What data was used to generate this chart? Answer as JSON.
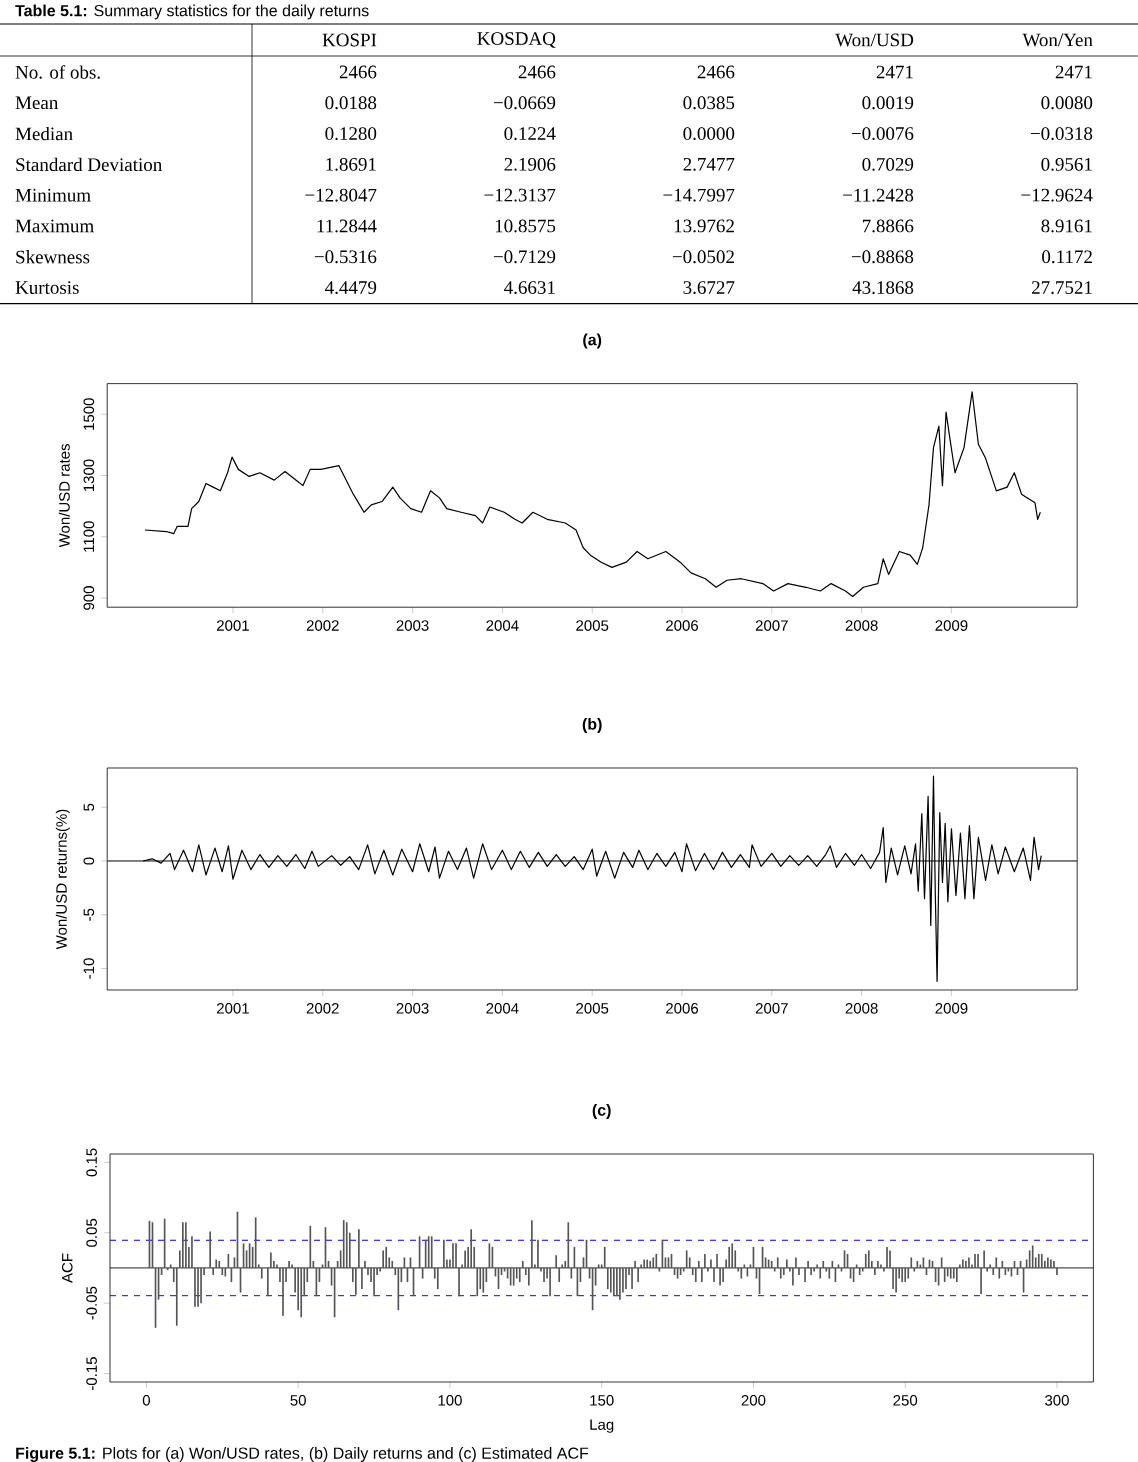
{
  "chart_data": [
    {
      "type": "other",
      "title": "**Table 5.1:** Summary statistics for the daily returns",
      "categories": [
        "KOSPI",
        "KOSDAQ",
        null,
        "Won/USD",
        "Won/Yen"
      ],
      "y_categories": [
        "No. of obs.",
        "Mean",
        "Median",
        "Standard Deviation",
        "Minimum",
        "Maximum",
        "Skewness",
        "Kurtosis"
      ],
      "cell_labels": [
        [
          "2466",
          "2466",
          "2466",
          "2471",
          "2471"
        ],
        [
          "0.0188",
          "−0.0669",
          "0.0385",
          "0.0019",
          "0.0080"
        ],
        [
          "0.1280",
          "0.1224",
          "0.0000",
          "−0.0076",
          "−0.0318"
        ],
        [
          "1.8691",
          "2.1906",
          "2.7477",
          "0.7029",
          "0.9561"
        ],
        [
          "−12.8047",
          "−12.3137",
          "−14.7997",
          "−11.2428",
          "−12.9624"
        ],
        [
          "11.2844",
          "10.8575",
          "13.9762",
          "7.8866",
          "8.9161"
        ],
        [
          "−0.5316",
          "−0.7129",
          "−0.0502",
          "−0.8868",
          "0.1172"
        ],
        [
          "4.4479",
          "4.6631",
          "3.6727",
          "43.1868",
          "27.7521"
        ]
      ]
    },
    {
      "type": "line",
      "title": "(a)",
      "ylabel": "Won/USD rates",
      "color": "#000000",
      "xlim": [
        1999.6,
        2010.4
      ],
      "ylim": [
        870,
        1600
      ],
      "xticks": [
        2001,
        2002,
        2003,
        2004,
        2005,
        2006,
        2007,
        2008,
        2009
      ],
      "yticks": [
        900,
        1100,
        1300,
        1500
      ],
      "x": [
        2000.02,
        2000.26,
        2000.34,
        2000.38,
        2000.5,
        2000.54,
        2000.62,
        2000.7,
        2000.78,
        2000.86,
        2000.94,
        2000.99,
        2001.06,
        2001.18,
        2001.3,
        2001.46,
        2001.58,
        2001.7,
        2001.78,
        2001.86,
        2001.98,
        2002.18,
        2002.26,
        2002.34,
        2002.46,
        2002.54,
        2002.66,
        2002.78,
        2002.86,
        2002.98,
        2003.1,
        2003.2,
        2003.3,
        2003.38,
        2003.54,
        2003.7,
        2003.78,
        2003.86,
        2004.02,
        2004.14,
        2004.22,
        2004.34,
        2004.5,
        2004.7,
        2004.82,
        2004.9,
        2004.98,
        2005.1,
        2005.22,
        2005.38,
        2005.5,
        2005.62,
        2005.82,
        2005.98,
        2006.1,
        2006.26,
        2006.38,
        2006.5,
        2006.66,
        2006.9,
        2007.02,
        2007.18,
        2007.38,
        2007.54,
        2007.66,
        2007.82,
        2007.9,
        2008.02,
        2008.18,
        2008.24,
        2008.3,
        2008.42,
        2008.54,
        2008.62,
        2008.68,
        2008.75,
        2008.8,
        2008.86,
        2008.9,
        2008.94,
        2008.98,
        2009.04,
        2009.14,
        2009.23,
        2009.3,
        2009.38,
        2009.5,
        2009.62,
        2009.7,
        2009.78,
        2009.93,
        2009.96,
        2009.99
      ],
      "values": [
        1122,
        1117,
        1110,
        1134,
        1134,
        1192,
        1215,
        1274,
        1262,
        1250,
        1309,
        1360,
        1320,
        1297,
        1309,
        1285,
        1313,
        1285,
        1267,
        1320,
        1320,
        1332,
        1285,
        1239,
        1180,
        1204,
        1215,
        1262,
        1227,
        1192,
        1180,
        1250,
        1227,
        1192,
        1180,
        1169,
        1145,
        1197,
        1180,
        1157,
        1145,
        1180,
        1157,
        1145,
        1122,
        1064,
        1040,
        1017,
        1000,
        1017,
        1052,
        1028,
        1052,
        1017,
        982,
        963,
        935,
        958,
        963,
        947,
        923,
        947,
        935,
        923,
        947,
        923,
        905,
        935,
        947,
        1028,
        977,
        1052,
        1040,
        1010,
        1064,
        1204,
        1391,
        1461,
        1267,
        1507,
        1426,
        1309,
        1391,
        1573,
        1402,
        1356,
        1250,
        1262,
        1309,
        1239,
        1211,
        1157,
        1180
      ]
    },
    {
      "type": "line",
      "title": "(b)",
      "ylabel": "Won/USD returns(%)",
      "color": "#000000",
      "xlim": [
        1999.6,
        2010.4
      ],
      "ylim": [
        -12,
        8.65
      ],
      "xticks": [
        2001,
        2002,
        2003,
        2004,
        2005,
        2006,
        2007,
        2008,
        2009
      ],
      "yticks": [
        -10,
        -5,
        0,
        5
      ],
      "ref_lines": [
        {
          "axis": "y",
          "value": 0,
          "color": "#000000",
          "line_style": "solid"
        }
      ],
      "x": [
        2000.0,
        2000.1,
        2000.2,
        2000.3,
        2000.35,
        2000.45,
        2000.55,
        2000.62,
        2000.7,
        2000.8,
        2000.88,
        2000.95,
        2001.0,
        2001.1,
        2001.2,
        2001.3,
        2001.4,
        2001.5,
        2001.6,
        2001.7,
        2001.8,
        2001.88,
        2001.95,
        2002.1,
        2002.2,
        2002.3,
        2002.4,
        2002.5,
        2002.58,
        2002.68,
        2002.78,
        2002.88,
        2003.0,
        2003.08,
        2003.18,
        2003.25,
        2003.3,
        2003.4,
        2003.5,
        2003.6,
        2003.68,
        2003.78,
        2003.88,
        2004.0,
        2004.1,
        2004.2,
        2004.3,
        2004.4,
        2004.5,
        2004.6,
        2004.7,
        2004.8,
        2004.9,
        2005.0,
        2005.05,
        2005.15,
        2005.25,
        2005.35,
        2005.45,
        2005.52,
        2005.62,
        2005.72,
        2005.82,
        2005.92,
        2006.0,
        2006.05,
        2006.15,
        2006.25,
        2006.35,
        2006.45,
        2006.55,
        2006.65,
        2006.75,
        2006.78,
        2006.88,
        2007.0,
        2007.1,
        2007.2,
        2007.3,
        2007.4,
        2007.5,
        2007.6,
        2007.65,
        2007.72,
        2007.82,
        2007.92,
        2008.0,
        2008.1,
        2008.2,
        2008.24,
        2008.27,
        2008.33,
        2008.4,
        2008.48,
        2008.55,
        2008.6,
        2008.63,
        2008.67,
        2008.7,
        2008.74,
        2008.77,
        2008.8,
        2008.82,
        2008.84,
        2008.87,
        2008.9,
        2008.93,
        2008.96,
        2009.0,
        2009.05,
        2009.1,
        2009.15,
        2009.2,
        2009.25,
        2009.3,
        2009.38,
        2009.45,
        2009.52,
        2009.6,
        2009.7,
        2009.8,
        2009.88,
        2009.92,
        2009.97,
        2010.0
      ],
      "values": [
        0,
        0.2,
        -0.2,
        0.7,
        -0.8,
        1.0,
        -1.0,
        1.5,
        -1.3,
        1.2,
        -1.0,
        1.4,
        -1.7,
        1.0,
        -0.8,
        0.6,
        -0.6,
        0.5,
        -0.5,
        0.6,
        -0.7,
        0.9,
        -0.5,
        0.5,
        -0.4,
        0.4,
        -0.8,
        1.5,
        -1.2,
        1.0,
        -1.3,
        1.1,
        -1.0,
        1.6,
        -1.0,
        1.3,
        -1.6,
        0.9,
        -0.8,
        1.2,
        -1.6,
        1.6,
        -0.8,
        1.0,
        -0.8,
        0.9,
        -0.6,
        0.8,
        -0.5,
        0.6,
        -0.5,
        0.4,
        -0.8,
        1.1,
        -1.4,
        0.9,
        -1.6,
        0.8,
        -0.6,
        1.0,
        -0.8,
        0.7,
        -0.5,
        0.8,
        -1.0,
        1.6,
        -0.9,
        0.7,
        -0.8,
        0.8,
        -0.6,
        0.6,
        -0.6,
        1.5,
        -0.5,
        0.7,
        -0.5,
        0.5,
        -0.4,
        0.5,
        -0.5,
        0.6,
        1.4,
        -0.6,
        0.7,
        -0.4,
        0.6,
        -0.7,
        0.8,
        3.1,
        -2.0,
        1.2,
        -1.3,
        1.4,
        -1.2,
        1.6,
        -2.8,
        4.4,
        -3.5,
        6.0,
        -6.0,
        7.9,
        -3.0,
        -11.2,
        4.5,
        -2.0,
        3.5,
        -3.8,
        3.0,
        -3.2,
        2.6,
        -3.5,
        3.3,
        -3.5,
        2.2,
        -1.8,
        1.5,
        -1.2,
        1.3,
        -1.0,
        1.2,
        -1.8,
        2.2,
        -0.8,
        0.5
      ]
    },
    {
      "type": "bar",
      "title": "(c)",
      "xlabel": "Lag",
      "ylabel": "ACF",
      "color": "#555555",
      "xlim": [
        -12,
        312
      ],
      "ylim": [
        -0.162,
        0.162
      ],
      "xticks": [
        0,
        50,
        100,
        150,
        200,
        250,
        300
      ],
      "yticks": [
        -0.15,
        -0.05,
        0.05,
        0.15
      ],
      "ref_lines": [
        {
          "axis": "y",
          "value": 0,
          "color": "#000000",
          "line_style": "solid"
        },
        {
          "axis": "y",
          "value": 0.0394,
          "color": "#0000cc",
          "line_style": "dashed"
        },
        {
          "axis": "y",
          "value": -0.0394,
          "color": "#0000cc",
          "line_style": "dashed"
        }
      ],
      "annotations": [
        "**Figure 5.1:** Plots for (a) Won/USD rates, (b) Daily returns and (c) Estimated ACF"
      ],
      "x": [
        1,
        2,
        3,
        4,
        5,
        6,
        7,
        8,
        9,
        10,
        11,
        12,
        13,
        14,
        15,
        16,
        17,
        18,
        19,
        20,
        21,
        22,
        23,
        24,
        25,
        26,
        27,
        28,
        29,
        30,
        31,
        32,
        33,
        34,
        35,
        36,
        37,
        38,
        39,
        40,
        41,
        42,
        43,
        44,
        45,
        46,
        47,
        48,
        49,
        50,
        51,
        52,
        53,
        54,
        55,
        56,
        57,
        58,
        59,
        60,
        61,
        62,
        63,
        64,
        65,
        66,
        67,
        68,
        69,
        70,
        71,
        72,
        73,
        74,
        75,
        76,
        77,
        78,
        79,
        80,
        81,
        82,
        83,
        84,
        85,
        86,
        87,
        88,
        89,
        90,
        91,
        92,
        93,
        94,
        95,
        96,
        97,
        98,
        99,
        100,
        101,
        102,
        103,
        104,
        105,
        106,
        107,
        108,
        109,
        110,
        111,
        112,
        113,
        114,
        115,
        116,
        117,
        118,
        119,
        120,
        121,
        122,
        123,
        124,
        125,
        126,
        127,
        128,
        129,
        130,
        131,
        132,
        133,
        134,
        135,
        136,
        137,
        138,
        139,
        140,
        141,
        142,
        143,
        144,
        145,
        146,
        147,
        148,
        149,
        150,
        151,
        152,
        153,
        154,
        155,
        156,
        157,
        158,
        159,
        160,
        161,
        162,
        163,
        164,
        165,
        166,
        167,
        168,
        169,
        170,
        171,
        172,
        173,
        174,
        175,
        176,
        177,
        178,
        179,
        180,
        181,
        182,
        183,
        184,
        185,
        186,
        187,
        188,
        189,
        190,
        191,
        192,
        193,
        194,
        195,
        196,
        197,
        198,
        199,
        200,
        201,
        202,
        203,
        204,
        205,
        206,
        207,
        208,
        209,
        210,
        211,
        212,
        213,
        214,
        215,
        216,
        217,
        218,
        219,
        220,
        221,
        222,
        223,
        224,
        225,
        226,
        227,
        228,
        229,
        230,
        231,
        232,
        233,
        234,
        235,
        236,
        237,
        238,
        239,
        240,
        241,
        242,
        243,
        244,
        245,
        246,
        247,
        248,
        249,
        250,
        251,
        252,
        253,
        254,
        255,
        256,
        257,
        258,
        259,
        260,
        261,
        262,
        263,
        264,
        265,
        266,
        267,
        268,
        269,
        270,
        271,
        272,
        273,
        274,
        275,
        276,
        277,
        278,
        279,
        280,
        281,
        282,
        283,
        284,
        285,
        286,
        287,
        288,
        289,
        290,
        291,
        292,
        293,
        294,
        295,
        296,
        297,
        298,
        299,
        300
      ],
      "values": [
        0.067,
        0.065,
        -0.085,
        -0.045,
        -0.01,
        0.07,
        -0.003,
        0.005,
        -0.02,
        -0.082,
        0.025,
        0.065,
        0.065,
        0.03,
        0.045,
        -0.055,
        -0.055,
        -0.05,
        -0.01,
        0.0,
        0.052,
        -0.01,
        0.012,
        0.01,
        -0.01,
        -0.012,
        0.02,
        -0.02,
        0.015,
        0.08,
        -0.035,
        0.035,
        0.025,
        0.035,
        0.03,
        0.072,
        0.005,
        -0.015,
        0.0,
        -0.04,
        0.022,
        0.01,
        0.005,
        -0.02,
        -0.068,
        -0.02,
        0.01,
        0.005,
        -0.035,
        -0.06,
        -0.07,
        -0.04,
        -0.02,
        0.06,
        0.01,
        -0.04,
        -0.02,
        0.005,
        0.058,
        0.01,
        -0.025,
        -0.07,
        0.01,
        0.025,
        0.068,
        0.065,
        0.05,
        -0.02,
        -0.038,
        0.055,
        -0.03,
        0.01,
        -0.01,
        -0.02,
        -0.04,
        -0.01,
        -0.005,
        0.025,
        0.03,
        0.015,
        0.01,
        -0.01,
        -0.06,
        -0.02,
        0.015,
        -0.02,
        0.015,
        -0.04,
        0.0,
        0.045,
        -0.015,
        0.04,
        0.045,
        0.045,
        -0.015,
        -0.03,
        0.0,
        0.04,
        0.012,
        0.012,
        0.035,
        0.035,
        -0.04,
        0.005,
        0.025,
        0.03,
        0.055,
        0.03,
        -0.04,
        -0.03,
        -0.035,
        -0.02,
        0.035,
        0.03,
        -0.012,
        -0.03,
        -0.01,
        -0.005,
        -0.015,
        -0.025,
        -0.025,
        -0.015,
        -0.02,
        0.01,
        -0.01,
        -0.025,
        0.068,
        0.005,
        0.04,
        -0.005,
        -0.02,
        -0.015,
        -0.04,
        0.0,
        0.018,
        -0.02,
        0.005,
        0.01,
        0.065,
        -0.015,
        0.03,
        -0.04,
        -0.02,
        0.015,
        0.04,
        -0.015,
        -0.06,
        -0.025,
        0.005,
        0.005,
        0.03,
        -0.03,
        -0.035,
        -0.04,
        -0.04,
        -0.045,
        -0.035,
        -0.03,
        -0.01,
        -0.03,
        0.01,
        -0.02,
        0.005,
        0.012,
        0.012,
        0.01,
        0.015,
        0.02,
        -0.005,
        0.04,
        0.015,
        0.015,
        0.02,
        -0.01,
        -0.015,
        -0.01,
        -0.005,
        0.025,
        0.015,
        -0.01,
        -0.02,
        0.01,
        -0.02,
        0.02,
        -0.005,
        0.012,
        -0.02,
        0.02,
        -0.025,
        -0.02,
        0.012,
        0.03,
        0.035,
        0.025,
        -0.005,
        -0.015,
        0.005,
        -0.012,
        0.005,
        0.03,
        -0.015,
        -0.037,
        0.03,
        0.015,
        0.012,
        0.01,
        -0.005,
        0.015,
        -0.015,
        -0.01,
        0.012,
        -0.005,
        -0.025,
        0.015,
        -0.01,
        0.0,
        -0.02,
        0.01,
        -0.01,
        -0.005,
        0.005,
        -0.015,
        0.01,
        -0.005,
        -0.015,
        0.01,
        -0.02,
        0.005,
        -0.005,
        0.025,
        0.02,
        -0.015,
        -0.02,
        0.005,
        -0.01,
        -0.005,
        0.02,
        0.025,
        0.01,
        -0.01,
        0.01,
        0.005,
        -0.005,
        0.03,
        0.025,
        -0.03,
        -0.035,
        -0.015,
        -0.02,
        -0.02,
        -0.015,
        0.015,
        -0.005,
        0.01,
        0.005,
        0.015,
        -0.01,
        0.012,
        0.01,
        -0.02,
        -0.025,
        0.015,
        -0.02,
        -0.012,
        -0.015,
        -0.015,
        -0.02,
        0.005,
        0.012,
        0.01,
        0.015,
        0.005,
        0.02,
        0.02,
        -0.037,
        0.025,
        -0.005,
        0.005,
        -0.01,
        0.015,
        -0.015,
        0.01,
        -0.01,
        -0.005,
        -0.012,
        0.01,
        -0.01,
        0.01,
        -0.035,
        0.012,
        0.025,
        0.032,
        0.015,
        0.02,
        0.02,
        0.01,
        0.015,
        0.012,
        0.01,
        -0.01
      ]
    }
  ]
}
